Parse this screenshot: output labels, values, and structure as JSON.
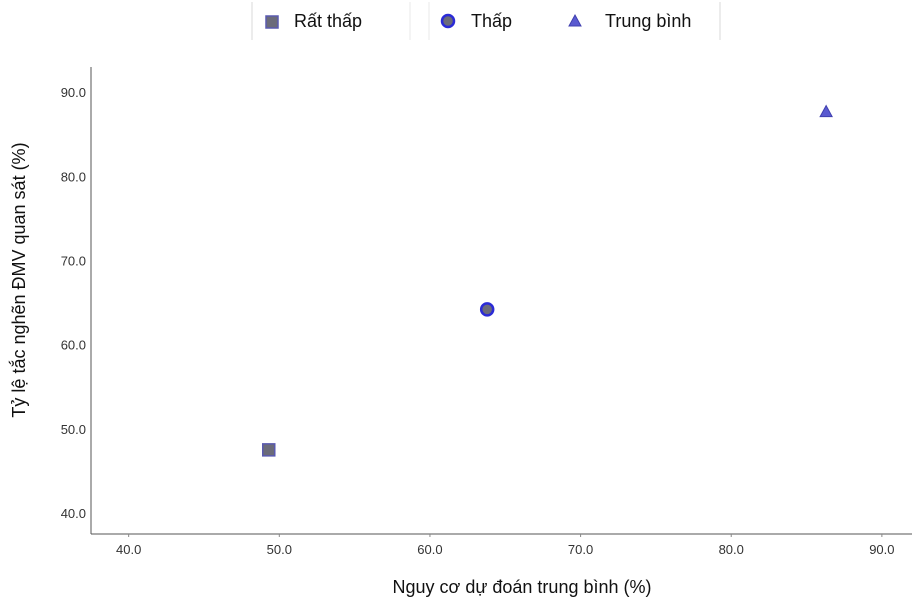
{
  "chart_data": {
    "type": "scatter",
    "xlabel": "Nguy cơ dự đoán trung bình (%)",
    "ylabel": "Tỷ lệ tắc nghẽn ĐMV quan sát (%)",
    "xlim": [
      37.5,
      92.0
    ],
    "ylim": [
      37.5,
      93.0
    ],
    "xticks": [
      "40.0",
      "50.0",
      "60.0",
      "70.0",
      "80.0",
      "90.0"
    ],
    "yticks": [
      "40.0",
      "50.0",
      "60.0",
      "70.0",
      "80.0",
      "90.0"
    ],
    "grid": false,
    "legend_position": "top-center",
    "series": [
      {
        "name": "Rất thấp",
        "marker": "square",
        "color": "#6b6b7a",
        "edge_color": "#5a5ab0",
        "points": [
          {
            "x": 49.3,
            "y": 47.5
          }
        ]
      },
      {
        "name": "Thấp",
        "marker": "circle",
        "color": "#6b6b7a",
        "edge_color": "#2b2bd6",
        "points": [
          {
            "x": 63.8,
            "y": 64.2
          }
        ]
      },
      {
        "name": "Trung bình",
        "marker": "triangle",
        "color": "#5a5ad0",
        "edge_color": "#4040b0",
        "points": [
          {
            "x": 86.3,
            "y": 87.7
          }
        ]
      }
    ]
  }
}
